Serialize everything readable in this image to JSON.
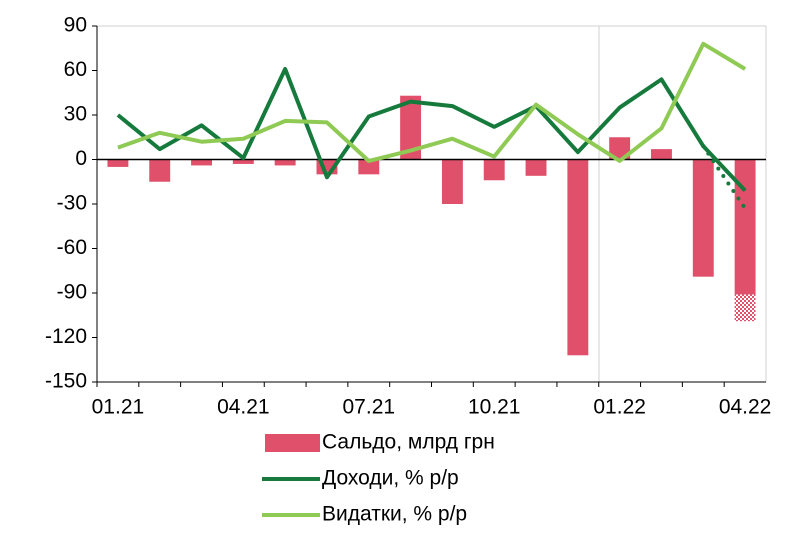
{
  "chart_data": {
    "type": "bar",
    "categories": [
      "01.21",
      null,
      null,
      "04.21",
      null,
      null,
      "07.21",
      null,
      null,
      "10.21",
      null,
      null,
      "01.22",
      null,
      null,
      "04.22"
    ],
    "series": [
      {
        "name": "Сальдо, млрд грн",
        "type": "bar",
        "color": "#e0506a",
        "values": [
          -5,
          -15,
          -4,
          -3,
          -4,
          -10,
          -10,
          43,
          -30,
          -14,
          -11,
          -132,
          15,
          7,
          -79,
          -91
        ]
      },
      {
        "type": "bar",
        "style": "hatched",
        "color": "#e0506a",
        "values": [
          null,
          null,
          null,
          null,
          null,
          null,
          null,
          null,
          null,
          null,
          null,
          null,
          null,
          null,
          null,
          -18
        ]
      },
      {
        "name": "Доходи, % р/р",
        "type": "line",
        "color": "#157a3c",
        "values": [
          30,
          7,
          23,
          1,
          61,
          -12,
          29,
          39,
          36,
          22,
          36,
          5,
          35,
          54,
          9,
          -21
        ]
      },
      {
        "name": "Видатки, % р/р",
        "type": "line",
        "color": "#8fca55",
        "values": [
          8,
          18,
          12,
          14,
          26,
          25,
          -1,
          6,
          14,
          2,
          37,
          17,
          -1,
          21,
          78,
          61
        ]
      },
      {
        "type": "line",
        "style": "dotted",
        "color": "#157a3c",
        "values": [
          null,
          null,
          null,
          null,
          null,
          null,
          null,
          null,
          null,
          null,
          null,
          null,
          null,
          null,
          9,
          -33
        ]
      }
    ],
    "ylim": [
      -150,
      90
    ],
    "yticks": [
      -150,
      -120,
      -90,
      -60,
      -30,
      0,
      30,
      60,
      90
    ]
  }
}
